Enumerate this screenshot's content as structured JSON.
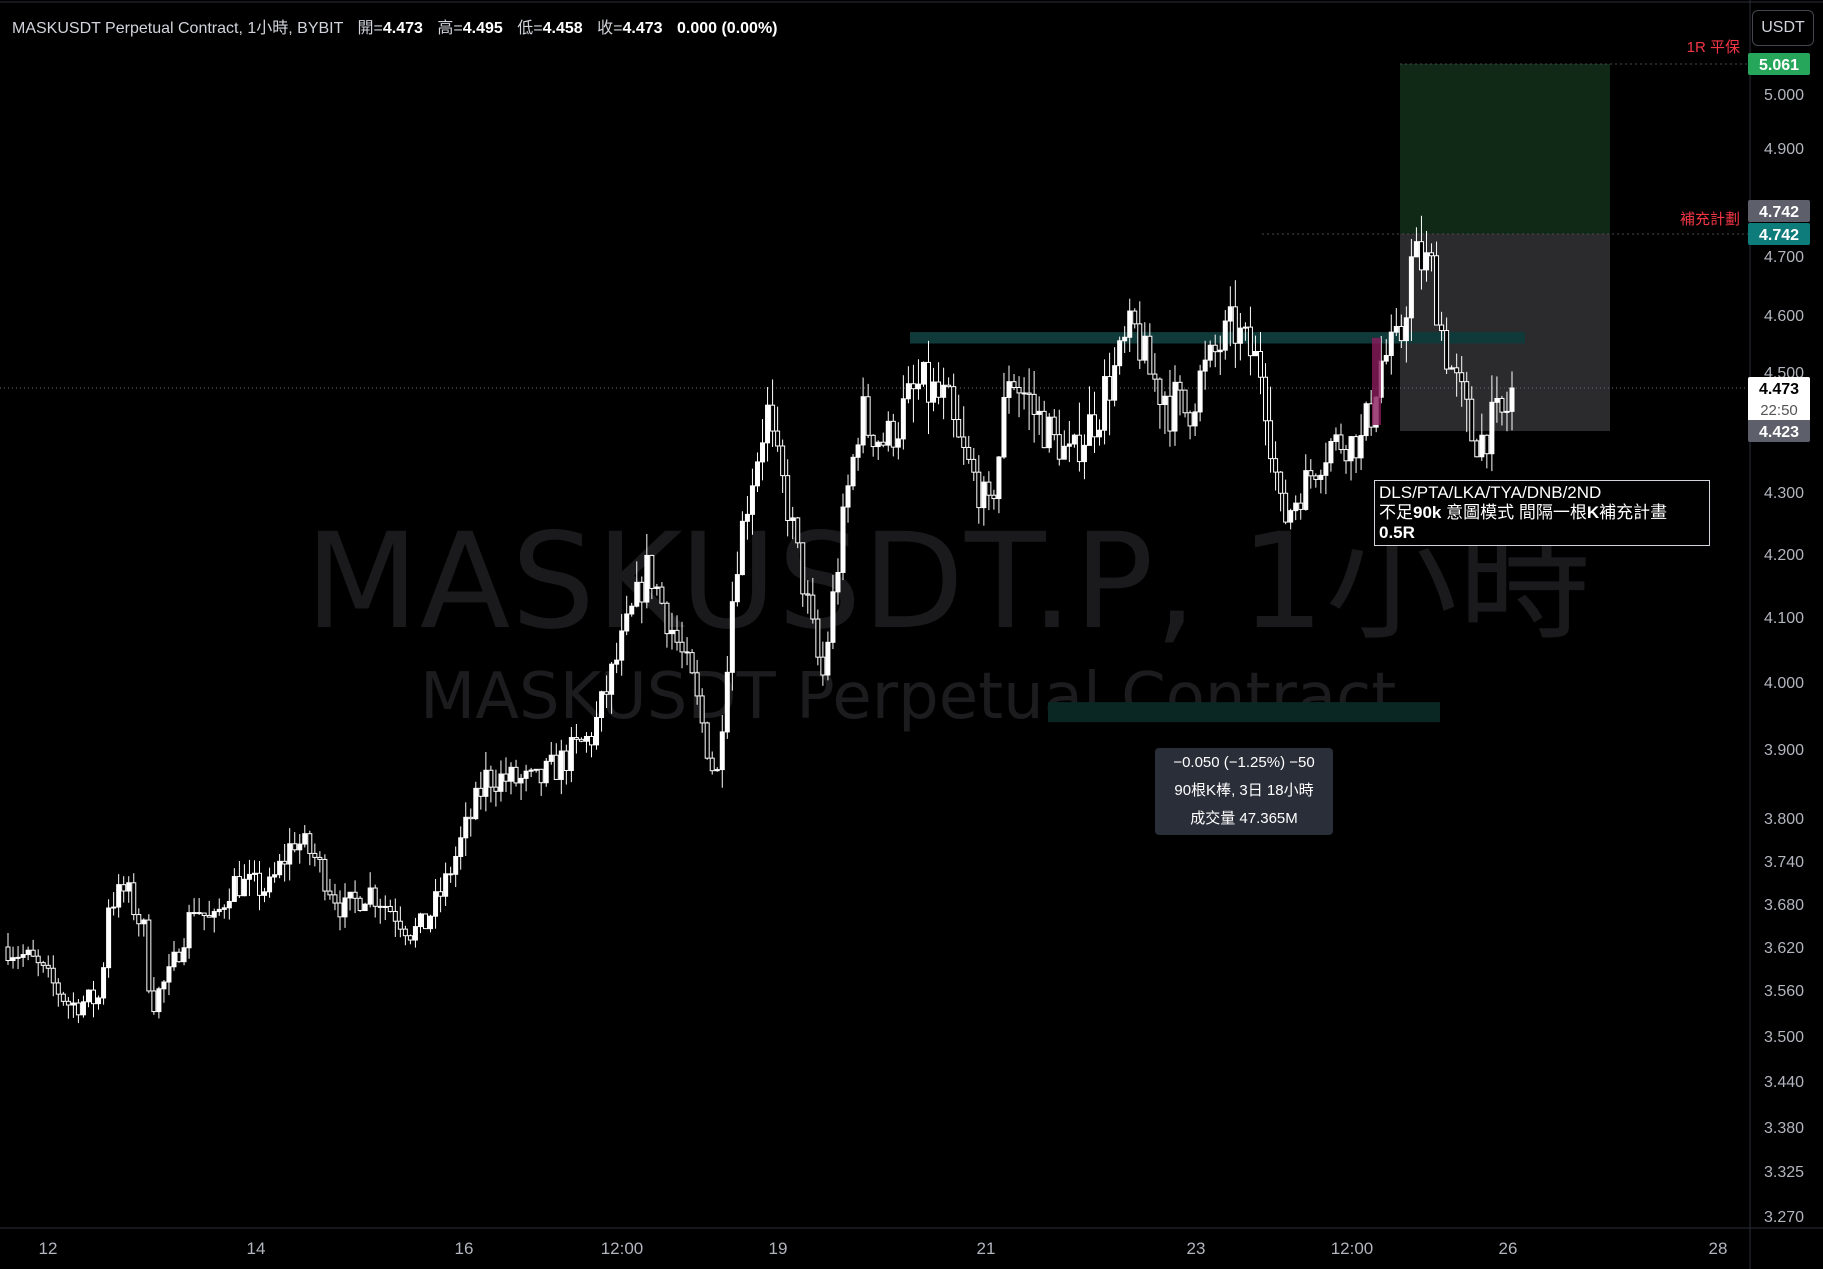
{
  "header": {
    "symbol_text": "MASKUSDT Perpetual Contract, 1小時, BYBIT",
    "open_label": "開=",
    "open": "4.473",
    "high_label": "高=",
    "high": "4.495",
    "low_label": "低=",
    "low": "4.458",
    "close_label": "收=",
    "close": "4.473",
    "change": "0.000 (0.00%)"
  },
  "currency_button": "USDT",
  "watermark": {
    "title": "MASKUSDT.P, 1小時",
    "subtitle": "MASKUSDT Perpetual Contract"
  },
  "note": {
    "line1": "DLS/PTA/LKA/TYA/DNB/2ND",
    "line2_prefix": "不足",
    "line2_bold": "90k",
    "line2_rest": " 意圖模式 間隔一根",
    "line2_bold2": "K",
    "line2_rest2": "補充計畫",
    "line3": "0.5R"
  },
  "measure": {
    "line1": "−0.050 (−1.25%) −50",
    "line2": "90根K棒, 3日 18小時",
    "line3": "成交量 47.365M"
  },
  "price_tags": {
    "target": "5.061",
    "entry_top": "4.742",
    "entry": "4.742",
    "current": "4.473",
    "countdown": "22:50",
    "stop": "4.423"
  },
  "annotations": {
    "breakeven": "1R 平保",
    "supplement": "補充計劃"
  },
  "colors": {
    "up_candle": "#ffffff",
    "down_candle": "#ffffff",
    "target_zone": "#13301a",
    "stop_zone": "#3a3a3c",
    "zone_line": "#103a3a",
    "target_tag": "#26a65b",
    "entry_tag": "#0e7c7b",
    "gray_tag": "#5d606b",
    "red_text": "#f23645"
  },
  "chart_data": {
    "type": "candlestick",
    "title": "MASKUSDT Perpetual Contract, 1小時, BYBIT",
    "interval": "1h",
    "x_ticks": [
      "12",
      "14",
      "16",
      "12:00",
      "19",
      "21",
      "23",
      "12:00",
      "26",
      "28"
    ],
    "y_ticks": [
      "5.000",
      "4.900",
      "4.700",
      "4.600",
      "4.500",
      "4.300",
      "4.200",
      "4.100",
      "4.000",
      "3.900",
      "3.800",
      "3.740",
      "3.680",
      "3.620",
      "3.560",
      "3.500",
      "3.440",
      "3.380",
      "3.325",
      "3.270"
    ],
    "ylim": [
      3.25,
      5.1
    ],
    "n_bars": 300,
    "price_path": [
      [
        0,
        3.62
      ],
      [
        8,
        3.6
      ],
      [
        20,
        3.54
      ],
      [
        30,
        3.55
      ],
      [
        32,
        3.68
      ],
      [
        38,
        3.7
      ],
      [
        44,
        3.64
      ],
      [
        46,
        3.54
      ],
      [
        52,
        3.58
      ],
      [
        60,
        3.68
      ],
      [
        66,
        3.65
      ],
      [
        72,
        3.71
      ],
      [
        84,
        3.7
      ],
      [
        92,
        3.77
      ],
      [
        98,
        3.75
      ],
      [
        108,
        3.67
      ],
      [
        116,
        3.7
      ],
      [
        124,
        3.67
      ],
      [
        130,
        3.64
      ],
      [
        134,
        3.65
      ],
      [
        140,
        3.7
      ],
      [
        154,
        3.86
      ],
      [
        170,
        3.85
      ],
      [
        188,
        3.92
      ],
      [
        206,
        4.18
      ],
      [
        220,
        4.0
      ],
      [
        228,
        3.85
      ],
      [
        234,
        4.18
      ],
      [
        244,
        4.45
      ],
      [
        254,
        4.2
      ],
      [
        262,
        4.0
      ],
      [
        274,
        4.44
      ],
      [
        282,
        4.4
      ],
      [
        294,
        4.48
      ],
      [
        302,
        4.45
      ],
      [
        316,
        4.26
      ],
      [
        322,
        4.5
      ],
      [
        334,
        4.42
      ],
      [
        342,
        4.37
      ],
      [
        356,
        4.5
      ],
      [
        362,
        4.58
      ],
      [
        368,
        4.49
      ],
      [
        378,
        4.44
      ],
      [
        394,
        4.58
      ],
      [
        404,
        4.5
      ],
      [
        410,
        4.25
      ],
      [
        426,
        4.4
      ],
      [
        436,
        4.4
      ],
      [
        442,
        4.52
      ],
      [
        448,
        4.55
      ],
      [
        452,
        4.7
      ],
      [
        458,
        4.68
      ],
      [
        462,
        4.55
      ],
      [
        466,
        4.48
      ],
      [
        472,
        4.4
      ],
      [
        480,
        4.43
      ],
      [
        484,
        4.46
      ]
    ],
    "last_price": 4.473,
    "long_position": {
      "entry": 4.742,
      "target": 5.061,
      "stop": 4.423,
      "label_target": "1R 平保",
      "label_entry": "補充計劃"
    },
    "zones": [
      {
        "from": 4.55,
        "to": 4.57
      },
      {
        "from": 3.94,
        "to": 3.97
      }
    ],
    "measurement": {
      "change": -0.05,
      "change_pct": -1.25,
      "bars": 90,
      "volume": "47.365M"
    }
  }
}
